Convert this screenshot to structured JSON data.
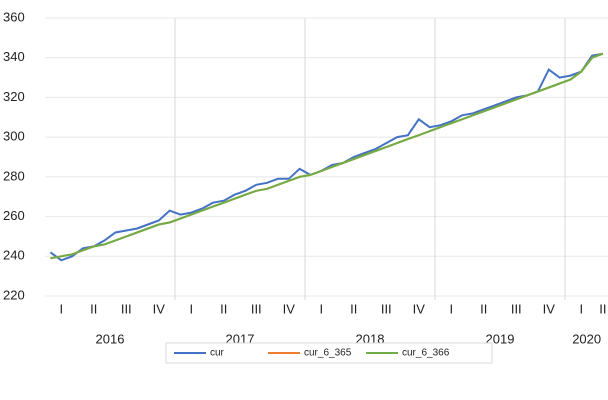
{
  "chart_data": {
    "type": "line",
    "categories": [
      null,
      "I",
      null,
      null,
      "II",
      null,
      null,
      "III",
      null,
      null,
      "IV",
      null,
      null,
      "I",
      null,
      null,
      "II",
      null,
      null,
      "III",
      null,
      null,
      "IV",
      null,
      null,
      "I",
      null,
      null,
      "II",
      null,
      null,
      "III",
      null,
      null,
      "IV",
      null,
      null,
      "I",
      null,
      null,
      "II",
      null,
      null,
      "III",
      null,
      null,
      "IV",
      null,
      null,
      "I",
      null,
      "II"
    ],
    "groups": [
      {
        "label": "2016",
        "size": 12
      },
      {
        "label": "2017",
        "size": 12
      },
      {
        "label": "2018",
        "size": 12
      },
      {
        "label": "2019",
        "size": 12
      },
      {
        "label": "2020",
        "size": 4
      }
    ],
    "series": [
      {
        "name": "cur",
        "color": "#4472c4",
        "values": [
          242,
          238,
          240,
          244,
          245,
          248,
          252,
          253,
          254,
          256,
          258,
          263,
          261,
          262,
          264,
          267,
          268,
          271,
          273,
          276,
          277,
          279,
          279,
          284,
          281,
          283,
          286,
          287,
          290,
          292,
          294,
          297,
          300,
          301,
          309,
          305,
          306,
          308,
          311,
          312,
          314,
          316,
          318,
          320,
          321,
          323,
          334,
          330,
          331,
          333,
          341,
          342
        ]
      },
      {
        "name": "cur_6_365",
        "color": "#ed7d31",
        "values": [
          239,
          240,
          241,
          243,
          245,
          246,
          248,
          250,
          252,
          254,
          256,
          257,
          259,
          261,
          263,
          265,
          267,
          269,
          271,
          273,
          274,
          276,
          278,
          280,
          281,
          283,
          285,
          287,
          289,
          291,
          293,
          295,
          297,
          299,
          301,
          303,
          305,
          307,
          309,
          311,
          313,
          315,
          317,
          319,
          321,
          323,
          325,
          327,
          329,
          333,
          340,
          342
        ]
      },
      {
        "name": "cur_6_366",
        "color": "#70ad47",
        "values": [
          239,
          240,
          241,
          243,
          245,
          246,
          248,
          250,
          252,
          254,
          256,
          257,
          259,
          261,
          263,
          265,
          267,
          269,
          271,
          273,
          274,
          276,
          278,
          280,
          281,
          283,
          285,
          287,
          289,
          291,
          293,
          295,
          297,
          299,
          301,
          303,
          305,
          307,
          309,
          311,
          313,
          315,
          317,
          319,
          321,
          323,
          325,
          327,
          329,
          333,
          340,
          342
        ]
      }
    ],
    "ylim": [
      220,
      360
    ],
    "yticks": [
      220,
      240,
      260,
      280,
      300,
      320,
      340,
      360
    ],
    "grid": true,
    "legend": "bottom"
  }
}
